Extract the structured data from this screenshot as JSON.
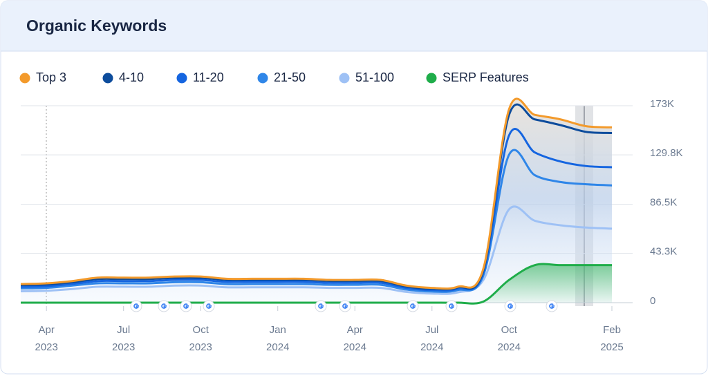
{
  "chart_data": {
    "type": "line",
    "title": "Organic Keywords",
    "x": [
      "2023-03",
      "2023-04",
      "2023-05",
      "2023-06",
      "2023-07",
      "2023-08",
      "2023-09",
      "2023-10",
      "2023-11",
      "2023-12",
      "2024-01",
      "2024-02",
      "2024-03",
      "2024-04",
      "2024-05",
      "2024-06",
      "2024-07",
      "2024-08",
      "2024-09",
      "2024-10",
      "2024-11",
      "2024-12",
      "2025-01",
      "2025-02"
    ],
    "series": [
      {
        "name": "Top 3",
        "color": "#f39a2b",
        "stack": "keywords",
        "values": [
          900,
          1000,
          1000,
          1200,
          1200,
          1200,
          1200,
          1200,
          1000,
          1000,
          1000,
          1000,
          900,
          900,
          900,
          800,
          800,
          600,
          1500,
          5000,
          4000,
          5000,
          5000,
          5000
        ]
      },
      {
        "name": "4-10",
        "color": "#0d4c9c",
        "stack": "keywords",
        "values": [
          1500,
          1500,
          1500,
          1800,
          1800,
          1800,
          1800,
          1800,
          1700,
          1700,
          1700,
          1700,
          1600,
          1600,
          1600,
          1200,
          1100,
          1100,
          2000,
          18000,
          29000,
          32000,
          30000,
          30000
        ]
      },
      {
        "name": "11-20",
        "color": "#1565e0",
        "stack": "keywords",
        "values": [
          1500,
          1500,
          1500,
          2000,
          2000,
          2000,
          2000,
          2000,
          2000,
          2000,
          2000,
          2000,
          1800,
          1800,
          1800,
          1500,
          1300,
          1300,
          2500,
          17000,
          20000,
          18000,
          16000,
          16000
        ]
      },
      {
        "name": "21-50",
        "color": "#2f86e8",
        "stack": "keywords",
        "values": [
          2500,
          2500,
          3000,
          3000,
          3000,
          3000,
          3000,
          3000,
          2800,
          2800,
          2800,
          2800,
          2700,
          2700,
          2700,
          2000,
          1800,
          2000,
          4000,
          48000,
          40000,
          38000,
          38000,
          38000
        ]
      },
      {
        "name": "51-100",
        "color": "#9ec1f5",
        "stack": "keywords",
        "values": [
          10000,
          10500,
          12000,
          14000,
          14000,
          14000,
          15000,
          15000,
          13500,
          13500,
          13500,
          13500,
          13000,
          13000,
          13000,
          9500,
          8000,
          9000,
          20000,
          82000,
          72000,
          68000,
          66000,
          65000
        ]
      },
      {
        "name": "SERP Features",
        "color": "#1fad4a",
        "values": [
          0,
          0,
          0,
          0,
          0,
          0,
          0,
          0,
          0,
          0,
          0,
          0,
          0,
          0,
          0,
          0,
          0,
          0,
          1000,
          20000,
          33000,
          33000,
          33000,
          33000
        ]
      }
    ],
    "ylim": [
      0,
      173000
    ],
    "yticks": [
      0,
      {
        "value": 43300,
        "label": "43.3K"
      },
      {
        "value": 86500,
        "label": "86.5K"
      },
      {
        "value": 129800,
        "label": "129.8K"
      },
      {
        "value": 173000,
        "label": "173K"
      }
    ],
    "xticks": [
      {
        "value": "2023-04",
        "label": [
          "Apr",
          "2023"
        ]
      },
      {
        "value": "2023-07",
        "label": [
          "Jul",
          "2023"
        ]
      },
      {
        "value": "2023-10",
        "label": [
          "Oct",
          "2023"
        ]
      },
      {
        "value": "2024-01",
        "label": [
          "Jan",
          "2024"
        ]
      },
      {
        "value": "2024-04",
        "label": [
          "Apr",
          "2024"
        ]
      },
      {
        "value": "2024-07",
        "label": [
          "Jul",
          "2024"
        ]
      },
      {
        "value": "2024-10",
        "label": [
          "Oct",
          "2024"
        ]
      },
      {
        "value": "2025-02",
        "label": [
          "Feb",
          "2025"
        ]
      }
    ],
    "grid": true
  }
}
